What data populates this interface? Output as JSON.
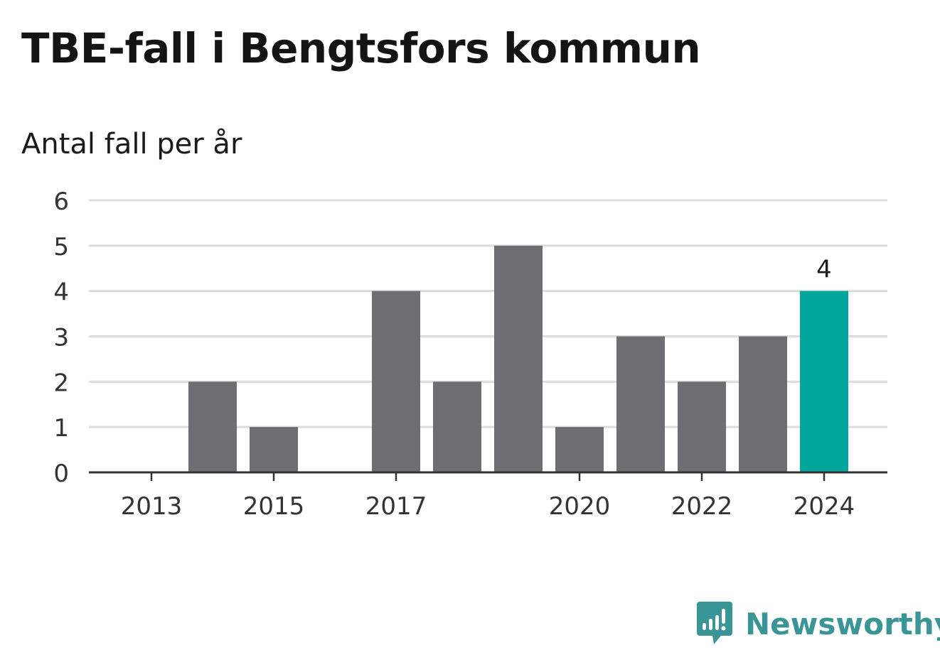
{
  "title": "TBE-fall i Bengtsfors kommun",
  "subtitle": "Antal fall per år",
  "brand": {
    "name": "Newsworthy",
    "color": "#3a9696",
    "icon": "bar-chart-speech-bubble-icon"
  },
  "colors": {
    "bar": "#6e6d72",
    "highlight": "#00a59b",
    "grid": "#dcdcdc",
    "axis": "#333333"
  },
  "chart_data": {
    "type": "bar",
    "title": "TBE-fall i Bengtsfors kommun",
    "subtitle": "Antal fall per år",
    "categories": [
      "2013",
      "2014",
      "2015",
      "2016",
      "2017",
      "2018",
      "2019",
      "2020",
      "2021",
      "2022",
      "2023",
      "2024"
    ],
    "values": [
      0,
      2,
      1,
      0,
      4,
      2,
      5,
      1,
      3,
      2,
      3,
      4
    ],
    "x_tick_labels": [
      "2013",
      "2015",
      "2017",
      "2020",
      "2022",
      "2024"
    ],
    "y_ticks": [
      0,
      1,
      2,
      3,
      4,
      5,
      6
    ],
    "ylim": [
      0,
      6
    ],
    "grid": true,
    "highlight_category": "2024",
    "annotations": [
      {
        "category": "2024",
        "text": "4"
      }
    ]
  }
}
